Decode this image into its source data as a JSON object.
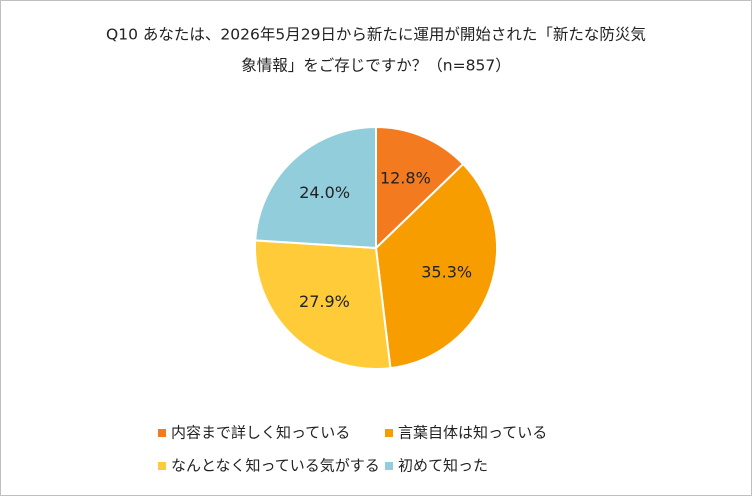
{
  "chart_data": {
    "type": "pie",
    "title": [
      "Q10 あなたは、2026年5月29日から新たに運用が開始された「新たな防災気",
      "象情報」をご存じですか？（n=857）"
    ],
    "categories": [
      "内容まで詳しく知っている",
      "言葉自体は知っている",
      "なんとなく知っている気がする",
      "初めて知った"
    ],
    "values": [
      12.8,
      35.3,
      27.9,
      24.0
    ],
    "value_labels": [
      "12.8%",
      "35.3%",
      "27.9%",
      "24.0%"
    ],
    "colors": [
      "#f47a20",
      "#f79d00",
      "#ffcb38",
      "#92cddc"
    ]
  }
}
